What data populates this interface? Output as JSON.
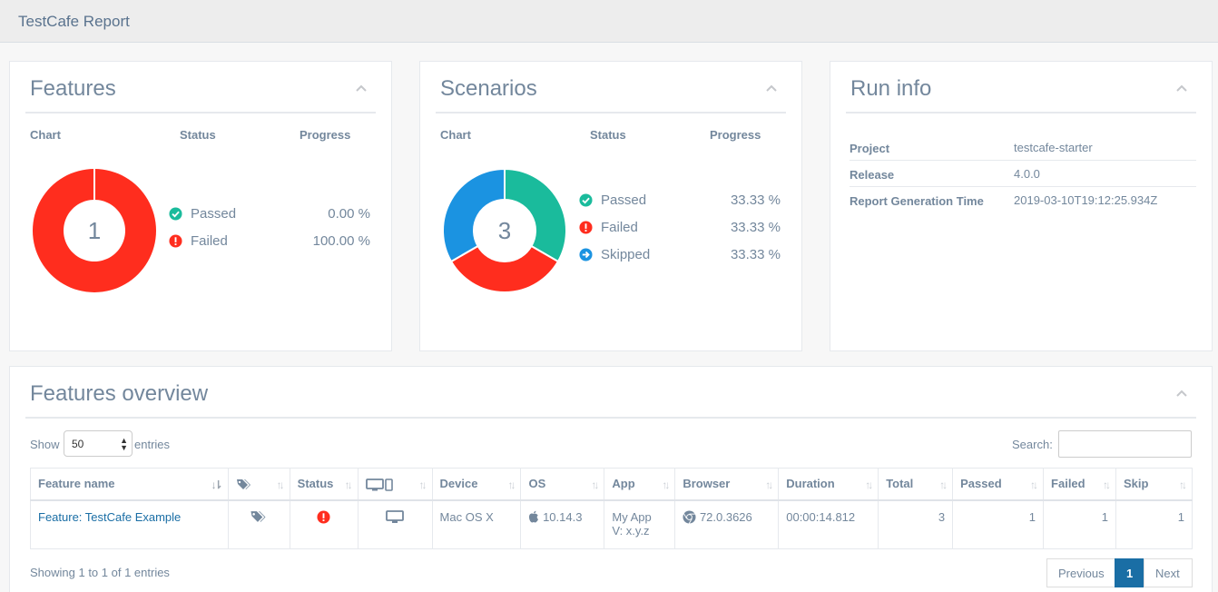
{
  "app": {
    "title": "TestCafe Report"
  },
  "features_panel": {
    "title": "Features",
    "columns": {
      "chart": "Chart",
      "status": "Status",
      "progress": "Progress"
    },
    "total": "1",
    "rows": [
      {
        "label": "Passed",
        "value": "0.00 %",
        "icon": "check-circle-icon",
        "color": "#1abb9c"
      },
      {
        "label": "Failed",
        "value": "100.00 %",
        "icon": "exclamation-circle-icon",
        "color": "#ff2d1e"
      }
    ],
    "chart_data": {
      "type": "pie",
      "categories": [
        "Passed",
        "Failed"
      ],
      "values": [
        0,
        100
      ]
    }
  },
  "scenarios_panel": {
    "title": "Scenarios",
    "columns": {
      "chart": "Chart",
      "status": "Status",
      "progress": "Progress"
    },
    "total": "3",
    "rows": [
      {
        "label": "Passed",
        "value": "33.33 %",
        "icon": "check-circle-icon",
        "color": "#1abb9c"
      },
      {
        "label": "Failed",
        "value": "33.33 %",
        "icon": "exclamation-circle-icon",
        "color": "#ff2d1e"
      },
      {
        "label": "Skipped",
        "value": "33.33 %",
        "icon": "arrow-circle-right-icon",
        "color": "#1b93e1"
      }
    ],
    "chart_data": {
      "type": "pie",
      "categories": [
        "Passed",
        "Failed",
        "Skipped"
      ],
      "values": [
        33.33,
        33.33,
        33.33
      ]
    }
  },
  "run_info": {
    "title": "Run info",
    "rows": [
      {
        "key": "Project",
        "value": "testcafe-starter"
      },
      {
        "key": "Release",
        "value": "4.0.0"
      },
      {
        "key": "Report Generation Time",
        "value": "2019-03-10T19:12:25.934Z"
      }
    ]
  },
  "overview": {
    "title": "Features overview",
    "show_label": "Show",
    "page_size": "50",
    "entries_label": "entries",
    "search_label": "Search:",
    "search_value": "",
    "columns": [
      "Feature name",
      "",
      "Status",
      "",
      "Device",
      "OS",
      "App",
      "Browser",
      "Duration",
      "Total",
      "Passed",
      "Failed",
      "Skip"
    ],
    "rows": [
      {
        "feature_name": "Feature: TestCafe Example",
        "device": "Mac OS X",
        "os": "10.14.3",
        "app_line1": "My App",
        "app_line2": "V: x.y.z",
        "browser": "72.0.3626",
        "duration": "00:00:14.812",
        "total": "3",
        "passed": "1",
        "failed": "1",
        "skip": "1"
      }
    ],
    "info": "Showing 1 to 1 of 1 entries",
    "pagination": {
      "previous": "Previous",
      "current": "1",
      "next": "Next"
    }
  },
  "colors": {
    "passed": "#1abb9c",
    "failed": "#ff2d1e",
    "skipped": "#1b93e1",
    "link": "#1a6ea5"
  }
}
